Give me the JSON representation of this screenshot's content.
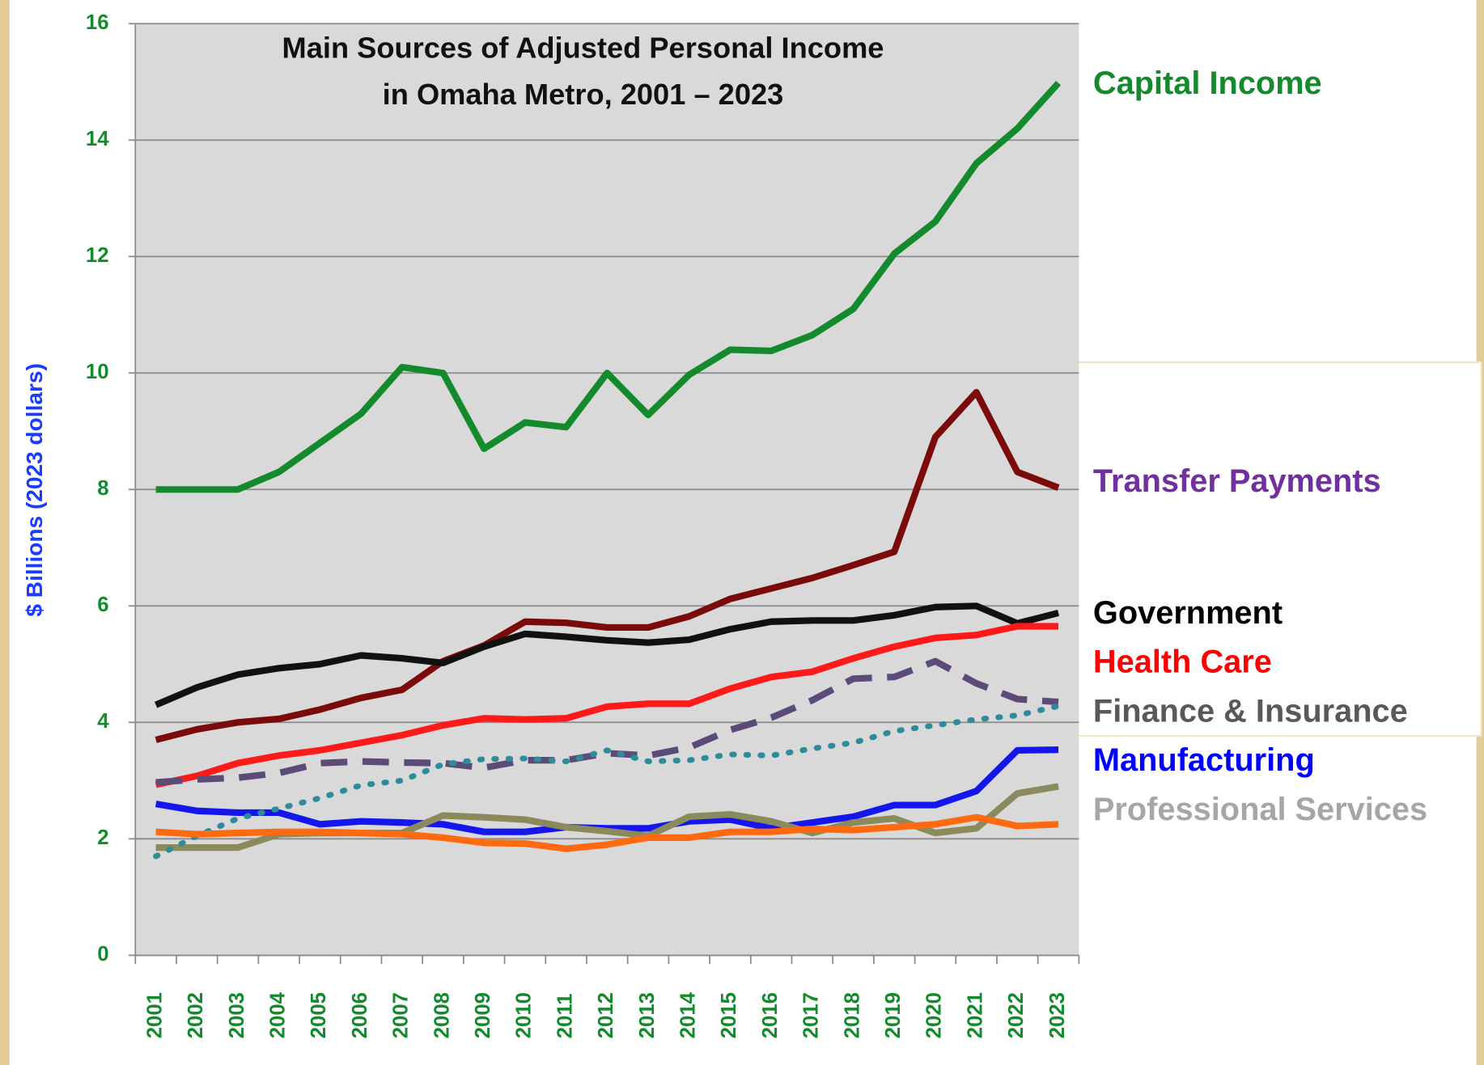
{
  "chart_data": {
    "type": "line",
    "title": [
      "Main Sources of Adjusted Personal Income",
      "in Omaha Metro, 2001 – 2023"
    ],
    "y_label": "$ Billions (2023 dollars)",
    "categories": [
      "2001",
      "2002",
      "2003",
      "2004",
      "2005",
      "2006",
      "2007",
      "2008",
      "2009",
      "2010",
      "2011",
      "2012",
      "2013",
      "2014",
      "2015",
      "2016",
      "2017",
      "2018",
      "2019",
      "2020",
      "2021",
      "2022",
      "2023"
    ],
    "ylim": [
      0,
      16
    ],
    "yticks": [
      0,
      2,
      4,
      6,
      8,
      10,
      12,
      14,
      16
    ],
    "grid": true,
    "series": [
      {
        "name": "Capital Income",
        "color": "#138a2b",
        "label_color": "#138a2b",
        "style": "solid",
        "values": [
          8,
          8,
          8,
          8.3,
          8.8,
          9.3,
          10.1,
          10,
          8.7,
          9.15,
          9.07,
          10,
          9.28,
          9.97,
          10.4,
          10.38,
          10.65,
          11.1,
          12.05,
          12.6,
          13.6,
          14.2,
          14.98
        ]
      },
      {
        "name": "Transfer Payments",
        "color": "#7b0b0b",
        "label_color": "#7030a0",
        "style": "solid",
        "values": [
          3.7,
          3.88,
          4.0,
          4.06,
          4.22,
          4.42,
          4.56,
          5.05,
          5.32,
          5.73,
          5.71,
          5.63,
          5.63,
          5.82,
          6.12,
          6.3,
          6.48,
          6.7,
          6.93,
          8.9,
          9.67,
          8.3,
          8.03
        ]
      },
      {
        "name": "Government",
        "color": "#111111",
        "label_color": "#000000",
        "style": "solid",
        "values": [
          4.3,
          4.6,
          4.82,
          4.93,
          5.0,
          5.15,
          5.1,
          5.02,
          5.3,
          5.52,
          5.47,
          5.41,
          5.37,
          5.42,
          5.6,
          5.73,
          5.75,
          5.75,
          5.84,
          5.98,
          6.0,
          5.7,
          5.88
        ]
      },
      {
        "name": "Health Care",
        "color": "#ff1a1a",
        "label_color": "#ff0000",
        "style": "solid",
        "values": [
          2.93,
          3.08,
          3.3,
          3.43,
          3.52,
          3.65,
          3.78,
          3.95,
          4.07,
          4.05,
          4.07,
          4.27,
          4.32,
          4.32,
          4.58,
          4.78,
          4.87,
          5.1,
          5.3,
          5.45,
          5.5,
          5.65,
          5.65
        ]
      },
      {
        "name": "Finance & Insurance",
        "color": "#5c4a78",
        "label_color": "#595959",
        "style": "dashed",
        "values": [
          2.97,
          3.02,
          3.05,
          3.13,
          3.3,
          3.33,
          3.31,
          3.3,
          3.22,
          3.35,
          3.35,
          3.47,
          3.43,
          3.57,
          3.87,
          4.08,
          4.38,
          4.75,
          4.78,
          5.05,
          4.67,
          4.4,
          4.35
        ]
      },
      {
        "name": "Manufacturing",
        "color": "#1515ee",
        "label_color": "#0000ff",
        "style": "solid",
        "values": [
          2.6,
          2.48,
          2.45,
          2.45,
          2.25,
          2.3,
          2.28,
          2.25,
          2.12,
          2.12,
          2.2,
          2.18,
          2.18,
          2.3,
          2.33,
          2.18,
          2.28,
          2.38,
          2.58,
          2.58,
          2.82,
          3.52,
          3.53
        ]
      },
      {
        "name": "Professional Services",
        "color": "#8a8a5c",
        "label_color": "#a6a6a6",
        "style": "solid",
        "values": [
          1.85,
          1.85,
          1.85,
          2.08,
          2.1,
          2.1,
          2.1,
          2.4,
          2.37,
          2.33,
          2.2,
          2.13,
          2.05,
          2.38,
          2.42,
          2.3,
          2.1,
          2.28,
          2.35,
          2.1,
          2.18,
          2.78,
          2.9
        ]
      },
      {
        "color": "#2e8b9a",
        "style": "dotted",
        "values": [
          1.7,
          2.05,
          2.35,
          2.52,
          2.7,
          2.92,
          3.0,
          3.28,
          3.37,
          3.38,
          3.33,
          3.52,
          3.33,
          3.35,
          3.45,
          3.43,
          3.55,
          3.65,
          3.85,
          3.95,
          4.05,
          4.12,
          4.28
        ]
      },
      {
        "color": "#ff6a10",
        "style": "solid",
        "values": [
          2.12,
          2.08,
          2.1,
          2.12,
          2.12,
          2.1,
          2.08,
          2.02,
          1.93,
          1.92,
          1.83,
          1.9,
          2.02,
          2.02,
          2.12,
          2.12,
          2.17,
          2.15,
          2.2,
          2.25,
          2.37,
          2.22,
          2.25
        ]
      }
    ]
  }
}
